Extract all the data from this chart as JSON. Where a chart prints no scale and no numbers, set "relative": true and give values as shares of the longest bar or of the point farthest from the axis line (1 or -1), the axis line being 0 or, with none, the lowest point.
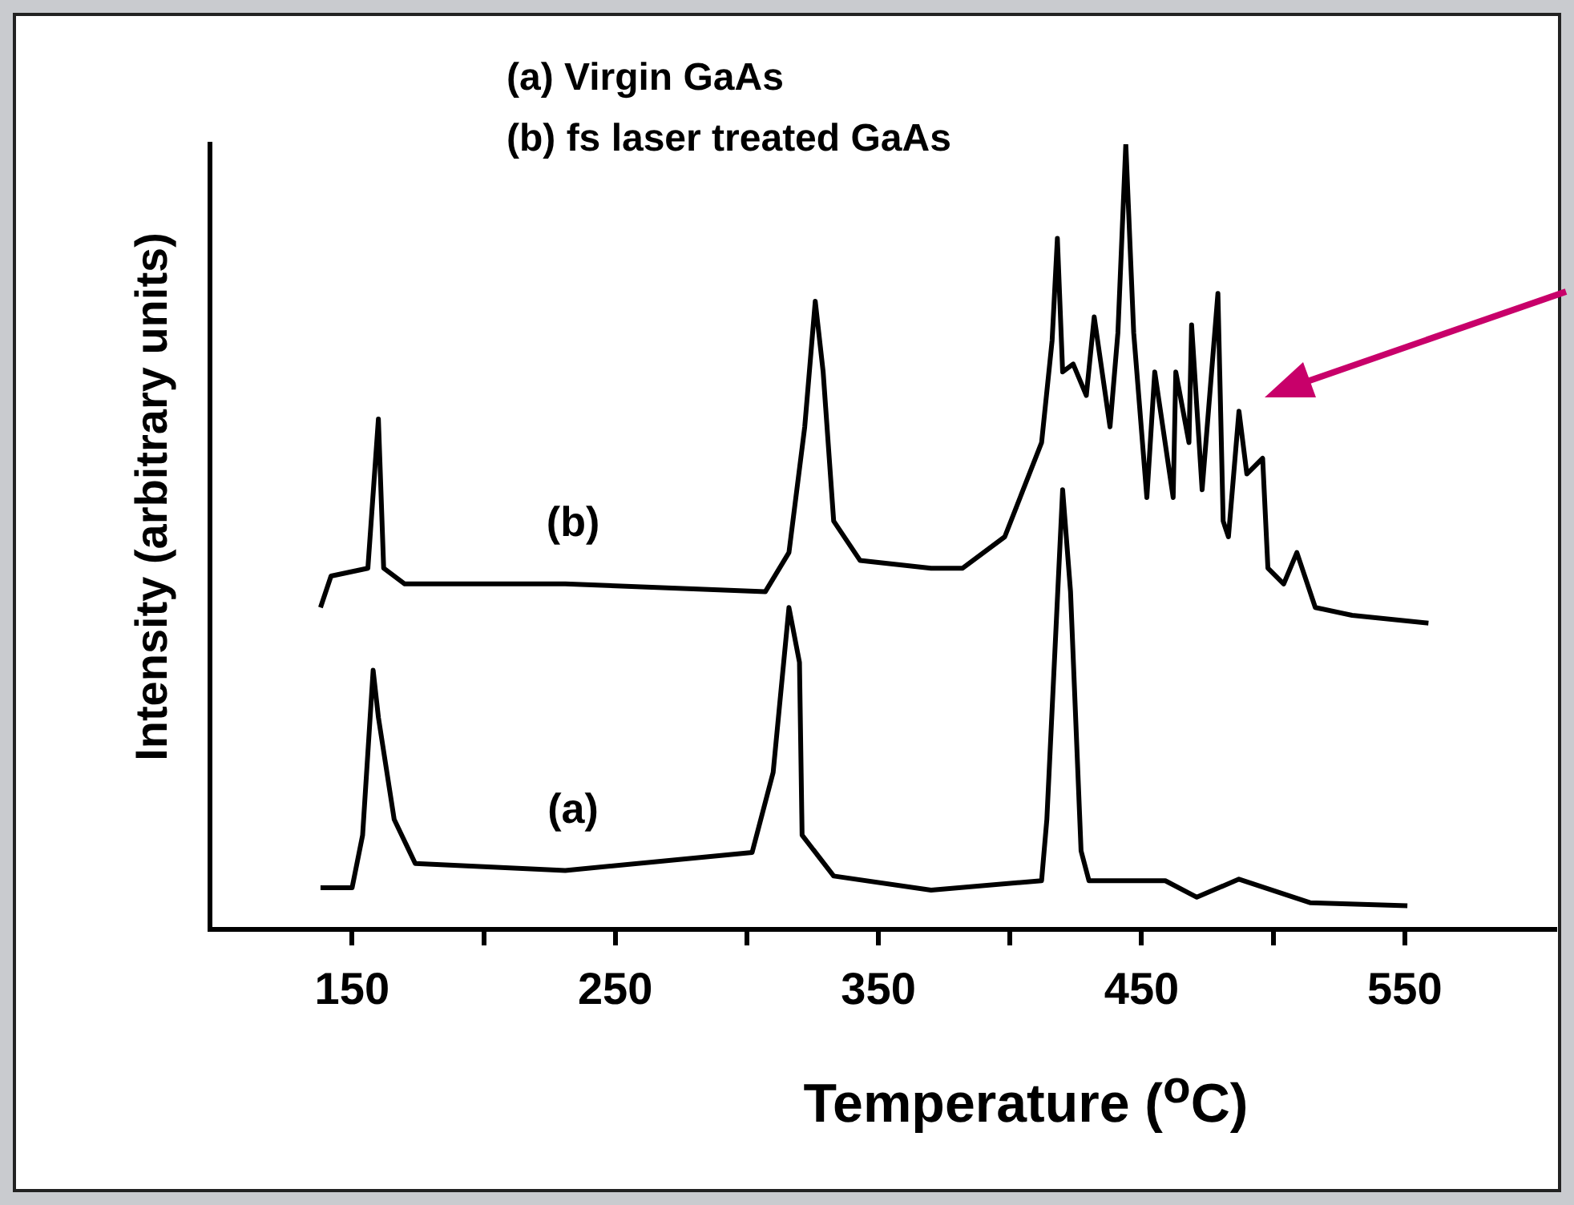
{
  "chart_data": {
    "type": "line",
    "relative": true,
    "xlabel": "Temperature ($^{o}$C)",
    "ylabel": "Intensity (arbitrary units)",
    "annotations": [
      "(a) Virgin GaAs",
      "(b) fs laser treated GaAs"
    ],
    "xlim": [
      96,
      607
    ],
    "xticks": [
      150,
      {
        "value": 200,
        "label": null
      },
      250,
      {
        "value": 300,
        "label": null
      },
      350,
      {
        "value": 400,
        "label": null
      },
      450,
      {
        "value": 500,
        "label": null
      },
      550
    ],
    "grid": false,
    "legend": false,
    "marker": "none",
    "line_style": "solid",
    "series": [
      {
        "name": "(b)",
        "color": "#000000",
        "x": [
          138,
          142,
          156,
          160,
          162,
          170,
          231,
          307,
          316,
          322,
          326,
          329,
          333,
          343,
          370,
          382,
          398,
          412,
          416,
          418,
          420,
          424,
          429,
          432,
          438,
          441,
          444,
          447,
          452,
          455,
          462,
          463,
          468,
          469,
          473,
          479,
          481,
          483,
          487,
          490,
          496,
          498,
          504,
          509,
          516,
          530,
          559
        ],
        "values": [
          0.41,
          0.45,
          0.46,
          0.65,
          0.46,
          0.44,
          0.44,
          0.43,
          0.48,
          0.64,
          0.8,
          0.71,
          0.52,
          0.47,
          0.46,
          0.46,
          0.5,
          0.62,
          0.75,
          0.88,
          0.71,
          0.72,
          0.68,
          0.78,
          0.64,
          0.76,
          1.0,
          0.76,
          0.55,
          0.71,
          0.55,
          0.71,
          0.62,
          0.77,
          0.56,
          0.81,
          0.52,
          0.5,
          0.66,
          0.58,
          0.6,
          0.46,
          0.44,
          0.48,
          0.41,
          0.4,
          0.39
        ]
      },
      {
        "name": "(a)",
        "color": "#000000",
        "x": [
          138,
          150,
          154,
          158,
          160,
          166,
          174,
          231,
          302,
          310,
          316,
          320,
          321,
          333,
          370,
          412,
          414,
          420,
          423,
          427,
          430,
          459,
          471,
          487,
          514,
          551
        ],
        "values": [
          0.053,
          0.053,
          0.12,
          0.33,
          0.27,
          0.14,
          0.084,
          0.075,
          0.098,
          0.2,
          0.41,
          0.34,
          0.12,
          0.068,
          0.05,
          0.062,
          0.14,
          0.56,
          0.43,
          0.1,
          0.062,
          0.062,
          0.041,
          0.064,
          0.034,
          0.03
        ]
      }
    ]
  }
}
